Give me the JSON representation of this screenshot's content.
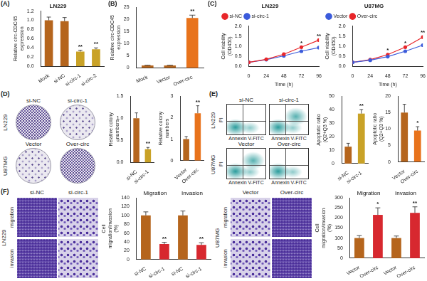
{
  "panel_labels": [
    "(A)",
    "(B)",
    "(C)",
    "(D)",
    "(E)",
    "(F)"
  ],
  "chart_data": [
    {
      "type": "bar",
      "title": "LN229",
      "y_label": "Relative circ-CDC45 expression",
      "categories": [
        "Mock",
        "si-NC",
        "si-circ-1",
        "si-circ-2"
      ],
      "values": [
        1.0,
        0.98,
        0.32,
        0.37
      ],
      "errors": [
        0.07,
        0.08,
        0.03,
        0.03
      ],
      "colors": [
        "#b5651d",
        "#b5651d",
        "#c9a227",
        "#c9a227"
      ],
      "annotations": [
        null,
        null,
        "**",
        "**"
      ],
      "ylim": [
        0,
        1.2
      ],
      "yticks": [
        {
          "value": 0,
          "label": "0.0"
        },
        0.2,
        0.4,
        0.6,
        0.8,
        {
          "value": 1,
          "label": "1.0"
        },
        1.2
      ],
      "grid": false
    },
    {
      "type": "bar",
      "y_label": "Relative circ-CDC45 expression",
      "categories": [
        "Mock",
        "Vector",
        "Over-circ"
      ],
      "values": [
        1.0,
        1.0,
        20.5
      ],
      "errors": [
        0.1,
        0.1,
        1.2
      ],
      "colors": [
        "#b5651d",
        "#b5651d",
        "#e8731c"
      ],
      "annotations": [
        null,
        null,
        "**"
      ],
      "ylim": [
        0,
        25
      ],
      "yticks": [
        0,
        5,
        10,
        15,
        20,
        25
      ],
      "grid": false
    },
    {
      "type": "line",
      "title": "LN229",
      "x_label": "Time (h)",
      "y_label": "Cell viability (OD450)",
      "x": [
        0,
        24,
        48,
        72,
        96
      ],
      "series": [
        {
          "name": "si-NC",
          "color": "#e8262a",
          "values": [
            0.2,
            0.35,
            0.6,
            0.95,
            1.3
          ]
        },
        {
          "name": "si-circ-1",
          "color": "#3b5bdb",
          "values": [
            0.2,
            0.33,
            0.52,
            0.75,
            0.93
          ]
        }
      ],
      "annotations": [
        null,
        null,
        null,
        "*",
        "**"
      ],
      "xlim": [
        0,
        96
      ],
      "xticks": [
        0,
        24,
        48,
        72,
        96
      ],
      "ylim": [
        0,
        2
      ],
      "yticks": [
        {
          "value": 0,
          "label": "0.0"
        },
        0.5,
        {
          "value": 1,
          "label": "1.0"
        },
        1.5,
        {
          "value": 2,
          "label": "2.0"
        }
      ],
      "legend": "upper left",
      "marker": "circle",
      "grid": false
    },
    {
      "type": "line",
      "title": "U87MG",
      "x_label": "Time (h)",
      "y_label": "Cell viability (OD450)",
      "x": [
        0,
        24,
        48,
        72,
        96
      ],
      "series": [
        {
          "name": "Vector",
          "color": "#3b5bdb",
          "values": [
            0.2,
            0.3,
            0.48,
            0.75,
            1.05
          ]
        },
        {
          "name": "Over-circ",
          "color": "#e8262a",
          "values": [
            0.2,
            0.33,
            0.58,
            0.95,
            1.45
          ]
        }
      ],
      "annotations": [
        null,
        null,
        "*",
        "*",
        "**"
      ],
      "xlim": [
        0,
        96
      ],
      "xticks": [
        0,
        24,
        48,
        72,
        96
      ],
      "ylim": [
        0,
        2
      ],
      "yticks": [
        {
          "value": 0,
          "label": "0.0"
        },
        0.5,
        {
          "value": 1,
          "label": "1.0"
        },
        1.5,
        {
          "value": 2,
          "label": "2.0"
        }
      ],
      "legend": "upper left",
      "marker": "circle",
      "grid": false
    },
    {
      "type": "bar",
      "y_label": "Relative colony numbers",
      "categories": [
        "si-NC",
        "si-circ-1"
      ],
      "values": [
        1.0,
        0.3
      ],
      "errors": [
        0.12,
        0.04
      ],
      "colors": [
        "#b5651d",
        "#c9a227"
      ],
      "annotations": [
        null,
        "**"
      ],
      "ylim": [
        0,
        1.5
      ],
      "yticks": [
        {
          "value": 0,
          "label": "0.0"
        },
        0.5,
        {
          "value": 1,
          "label": "1.0"
        },
        1.5
      ],
      "grid": false
    },
    {
      "type": "bar",
      "y_label": "Relative colony numbers",
      "categories": [
        "Vector",
        "Over-circ"
      ],
      "values": [
        1.0,
        2.2
      ],
      "errors": [
        0.12,
        0.35
      ],
      "colors": [
        "#b5651d",
        "#e8731c"
      ],
      "annotations": [
        null,
        "**"
      ],
      "ylim": [
        0,
        3
      ],
      "yticks": [
        0,
        1,
        2,
        3
      ],
      "grid": false
    },
    {
      "type": "bar",
      "y_label": "Apoptotic ratio (Q2+Q3 %)",
      "categories": [
        "si-NC",
        "si-circ-1"
      ],
      "values": [
        12.5,
        37
      ],
      "errors": [
        2.5,
        3
      ],
      "colors": [
        "#b5651d",
        "#c9a227"
      ],
      "annotations": [
        null,
        "**"
      ],
      "ylim": [
        0,
        50
      ],
      "yticks": [
        0,
        10,
        20,
        30,
        40,
        50
      ],
      "grid": false
    },
    {
      "type": "bar",
      "y_label": "Apoptotic ratio (Q2+Q3 %)",
      "categories": [
        "Vector",
        "Over-circ"
      ],
      "values": [
        15,
        9.5
      ],
      "errors": [
        2.5,
        1.2
      ],
      "colors": [
        "#b5651d",
        "#e8731c"
      ],
      "annotations": [
        null,
        "*"
      ],
      "ylim": [
        0,
        20
      ],
      "yticks": [
        0,
        5,
        10,
        15,
        20
      ],
      "grid": false
    },
    {
      "type": "bar",
      "y_label": "Cell migration/invasion (%)",
      "categories": [
        "si-NC",
        "si-circ-1",
        "si-NC",
        "si-circ-1"
      ],
      "group_labels": [
        "Migration",
        "Invasion"
      ],
      "values": [
        100,
        35,
        100,
        33
      ],
      "errors": [
        8,
        4,
        10,
        5
      ],
      "colors": [
        "#b5651d",
        "#d7282f",
        "#b5651d",
        "#d7282f"
      ],
      "annotations": [
        null,
        "**",
        null,
        "**"
      ],
      "ylim": [
        0,
        140
      ],
      "yticks": [
        0,
        20,
        40,
        60,
        80,
        100,
        120,
        140
      ],
      "grid": false
    },
    {
      "type": "bar",
      "y_label": "Cell migration/invasion (%)",
      "categories": [
        "Vector",
        "Over-circ",
        "Vector",
        "Over-circ"
      ],
      "group_labels": [
        "Migration",
        "Invasion"
      ],
      "values": [
        100,
        215,
        100,
        225
      ],
      "errors": [
        12,
        35,
        10,
        30
      ],
      "colors": [
        "#b5651d",
        "#d7282f",
        "#b5651d",
        "#d7282f"
      ],
      "annotations": [
        null,
        "*",
        null,
        "**"
      ],
      "ylim": [
        0,
        300
      ],
      "yticks": [
        0,
        50,
        100,
        150,
        200,
        250,
        300
      ],
      "grid": false
    }
  ],
  "images": {
    "D": {
      "rows": [
        {
          "label": "LN229",
          "columns": [
            "si-NC",
            "si-circ-1"
          ]
        },
        {
          "label": "U87MG",
          "columns": [
            "Vector",
            "Over-circ"
          ]
        }
      ]
    },
    "E": {
      "x_label": "Annexin V-FITC",
      "y_label": "PI",
      "rows": [
        {
          "label": "LN229",
          "columns": [
            "si-NC",
            "si-circ-1"
          ]
        },
        {
          "label": "U87MG",
          "columns": [
            "Vector",
            "Over-circ"
          ]
        }
      ]
    },
    "F": [
      {
        "label": "LN229",
        "columns": [
          "si-NC",
          "si-circ-1"
        ],
        "rows": [
          "migration",
          "invasion"
        ]
      },
      {
        "label": "U87MG",
        "columns": [
          "Vector",
          "Over-circ"
        ],
        "rows": [
          "migration",
          "invasion"
        ]
      }
    ]
  }
}
